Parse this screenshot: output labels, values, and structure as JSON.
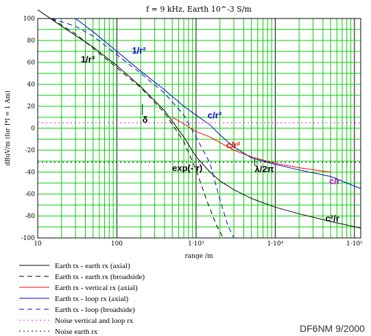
{
  "credit": "DF6NM 9/2000",
  "chart_data": {
    "type": "line",
    "title": "f = 9 kHz, Earth 10^-3 S/m",
    "xlabel": "range /m",
    "ylabel": "dBuV/m (for I*l = 1 Am)",
    "xscale": "log",
    "xlim": [
      10,
      120000
    ],
    "ylim": [
      -100,
      100
    ],
    "grid": true,
    "x_tick_labels": [
      "10",
      "100",
      "1·10³",
      "1·10⁴",
      "1·10⁵"
    ],
    "y_ticks": [
      100,
      80,
      60,
      40,
      20,
      0,
      -20,
      -40,
      -60,
      -80,
      -100
    ],
    "legend_position": "bottom-left",
    "series": [
      {
        "name": "Earth tx - earth rx (axial)",
        "color": "#000000",
        "dash": "solid",
        "x": [
          10,
          20,
          50,
          100,
          200,
          400,
          700,
          1000,
          1500,
          2000,
          3000,
          5000,
          10000,
          20000,
          50000,
          120000
        ],
        "y": [
          108,
          93,
          74,
          57,
          38,
          16,
          -8,
          -26,
          -40,
          -48,
          -56,
          -64,
          -72,
          -78,
          -85,
          -91
        ]
      },
      {
        "name": "Earth tx - earth rx (broadside)",
        "color": "#000000",
        "dash": "dash",
        "x": [
          15,
          30,
          100,
          200,
          400,
          700,
          1000,
          1400,
          1800,
          2200
        ],
        "y": [
          100,
          86,
          55,
          37,
          14,
          -12,
          -38,
          -68,
          -88,
          -100
        ]
      },
      {
        "name": "Earth tx - vertical rx (axial)",
        "color": "#ff0000",
        "dash": "solid",
        "x": [
          500,
          700,
          1000,
          1500,
          2000,
          3000,
          5000,
          10000,
          20000,
          50000
        ],
        "y": [
          10,
          4,
          -3,
          -8,
          -13,
          -20,
          -26,
          -32,
          -36,
          -40
        ]
      },
      {
        "name": "Earth tx - loop rx (axial)",
        "color": "#0000cc",
        "dash": "solid",
        "x": [
          30,
          50,
          100,
          200,
          400,
          700,
          1000,
          1500,
          2000,
          3000,
          5000,
          10000,
          20000,
          50000,
          120000
        ],
        "y": [
          100,
          88,
          70,
          52,
          35,
          20,
          12,
          3,
          -6,
          -17,
          -27,
          -33,
          -38,
          -44,
          -55
        ]
      },
      {
        "name": "Earth tx - loop (broadside)",
        "color": "#0000cc",
        "dash": "dash",
        "x": [
          15,
          30,
          50,
          100,
          200,
          400,
          700,
          1000,
          1500,
          2000,
          2500,
          3000
        ],
        "y": [
          100,
          93,
          84,
          67,
          50,
          32,
          12,
          -8,
          -32,
          -65,
          -88,
          -100
        ]
      },
      {
        "name": "Noise vertical and loop rx",
        "color": "#ff00ff",
        "dash": "dot",
        "x": [
          10,
          120000
        ],
        "y": [
          5,
          5
        ]
      },
      {
        "name": "Noise earth rx",
        "color": "#000000",
        "dash": "dot",
        "x": [
          10,
          120000
        ],
        "y": [
          -31,
          -31
        ]
      }
    ],
    "annotations": [
      {
        "text": "1/r³",
        "color": "#000000",
        "x": 35,
        "y": 60
      },
      {
        "text": "1/r²",
        "color": "#0000cc",
        "x": 155,
        "y": 68
      },
      {
        "text": "c/r³",
        "color": "#0000cc",
        "x": 1400,
        "y": 9
      },
      {
        "text": "c/r²",
        "color": "#ff0000",
        "x": 2400,
        "y": -18
      },
      {
        "text": "δ",
        "color": "#000000",
        "x": 210,
        "y": 5
      },
      {
        "text": "exp(- r)",
        "color": "#000000",
        "x": 500,
        "y": -39
      },
      {
        "text": "λ/2π",
        "color": "#000000",
        "x": 5500,
        "y": -40
      },
      {
        "text": "c/r",
        "color": "#cc00cc",
        "x": 48000,
        "y": -51
      },
      {
        "text": "c²/r",
        "color": "#000000",
        "x": 43000,
        "y": -85
      }
    ]
  }
}
